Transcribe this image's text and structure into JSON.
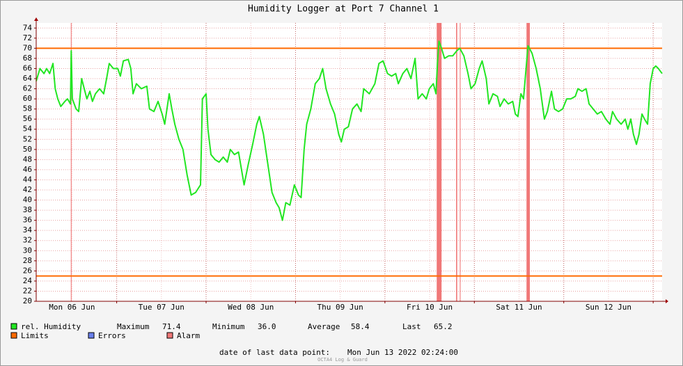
{
  "chart_data": {
    "type": "line",
    "title": "Humidity Logger at Port 7 Channel 1",
    "x": [
      2.4,
      3.4,
      4.5,
      5.2,
      6.0,
      6.9,
      7.5,
      8.2,
      9.0,
      10.1,
      10.8,
      11.6,
      11.8,
      12.1,
      13.1,
      13.8,
      14.6,
      15.3,
      16.0,
      16.8,
      17.5,
      18.3,
      19.4,
      20.5,
      21.3,
      22.0,
      23.1,
      24.3,
      25.0,
      25.8,
      27.1,
      27.8,
      28.4,
      29.3,
      30.6,
      32.1,
      32.8,
      34.0,
      35.1,
      36.2,
      36.9,
      38.1,
      38.8,
      39.6,
      40.7,
      41.8,
      42.9,
      44.0,
      45.2,
      46.5,
      47.0,
      48.0,
      48.5,
      49.3,
      50.4,
      51.5,
      52.6,
      53.7,
      54.5,
      55.6,
      56.7,
      57.5,
      58.2,
      59.3,
      60.5,
      61.6,
      62.3,
      63.4,
      64.6,
      65.7,
      66.8,
      67.6,
      68.5,
      69.4,
      70.5,
      71.7,
      72.8,
      73.5,
      74.3,
      75.0,
      76.1,
      77.3,
      78.4,
      79.3,
      80.2,
      81.4,
      82.5,
      83.6,
      84.3,
      85.1,
      86.2,
      87.3,
      88.5,
      89.6,
      90.3,
      91.8,
      93.3,
      94.4,
      95.5,
      96.7,
      97.8,
      98.9,
      99.6,
      100.8,
      101.9,
      103.0,
      104.1,
      104.9,
      106.0,
      107.1,
      107.9,
      109.0,
      109.7,
      110.1,
      110.5,
      111.2,
      112.0,
      113.1,
      114.2,
      115.3,
      116.1,
      117.2,
      118.3,
      119.1,
      120.2,
      121.3,
      122.1,
      123.2,
      123.9,
      125.0,
      126.2,
      126.9,
      128.0,
      129.1,
      130.3,
      131.0,
      131.7,
      132.5,
      133.2,
      134.0,
      134.4,
      135.5,
      136.6,
      137.7,
      138.8,
      139.6,
      140.7,
      141.5,
      142.6,
      143.7,
      144.8,
      145.9,
      147.1,
      147.8,
      148.9,
      150.0,
      150.8,
      151.9,
      153.0,
      154.1,
      155.3,
      156.4,
      157.1,
      158.2,
      159.4,
      160.5,
      161.2,
      162.0,
      162.7,
      163.5,
      164.2,
      165.0,
      165.7,
      166.5,
      167.2,
      168.0,
      168.7,
      169.4,
      170.4
    ],
    "series": [
      {
        "name": "rel. Humidity",
        "color": "#22e622",
        "values": [
          63.5,
          66,
          65,
          66,
          65,
          67,
          62,
          60,
          58.5,
          59.5,
          60,
          59,
          69.5,
          60,
          58,
          57.5,
          64,
          62,
          60,
          61.5,
          59.5,
          61,
          62,
          61,
          64,
          67,
          66,
          66,
          64.5,
          67.5,
          67.8,
          66,
          61,
          63,
          62,
          62.5,
          58,
          57.5,
          59.5,
          57,
          55,
          61,
          58,
          55,
          52,
          50,
          45,
          41,
          41.5,
          43,
          60,
          61,
          54,
          49,
          48,
          47.5,
          48.5,
          47.5,
          50,
          49,
          49.5,
          46,
          43,
          47,
          51,
          55,
          56.5,
          53,
          47,
          41.5,
          39.5,
          38.5,
          36,
          39.5,
          39,
          43,
          41,
          40.5,
          50,
          55,
          58,
          63,
          64,
          66,
          62,
          59,
          57,
          53,
          51.5,
          54,
          54.5,
          58,
          59,
          57.5,
          62,
          61,
          63,
          67,
          67.5,
          65,
          64.5,
          65,
          63,
          65,
          66,
          64,
          68,
          60,
          61,
          60,
          62,
          63,
          61,
          67,
          71.4,
          70,
          68,
          68.5,
          68.5,
          69.5,
          70,
          68.5,
          65,
          62,
          63,
          66,
          67.5,
          64,
          59,
          61,
          60.5,
          58.5,
          60,
          59,
          59.5,
          57,
          56.5,
          61,
          60,
          67,
          70.5,
          69,
          66,
          62,
          56,
          57.5,
          61.5,
          58,
          57.5,
          58,
          60,
          60,
          60.5,
          62,
          61.5,
          62,
          59,
          58,
          57,
          57.5,
          56,
          55,
          57.5,
          56,
          55,
          56,
          54,
          56,
          53,
          51,
          53,
          57,
          56,
          55,
          63,
          66,
          66.5,
          66,
          65
        ]
      }
    ],
    "limits": {
      "name": "Limits",
      "color": "#ff6a00",
      "values": [
        70,
        25
      ]
    },
    "errors": {
      "name": "Errors",
      "color": "#6a80ec"
    },
    "alarm": {
      "name": "Alarm",
      "color": "#f07878",
      "bands": [
        [
          11.7,
          11.9
        ],
        [
          109.9,
          111.2
        ],
        [
          115.1,
          115.4
        ],
        [
          116.1,
          116.3
        ],
        [
          134.0,
          134.9
        ]
      ]
    },
    "stats": [
      {
        "label": "Maximum",
        "value": "71.4"
      },
      {
        "label": "Minimum",
        "value": "36.0"
      },
      {
        "label": "Average",
        "value": "58.4"
      },
      {
        "label": "Last",
        "value": "65.2"
      }
    ],
    "xlim": [
      2.4,
      170.4
    ],
    "ylim": [
      20,
      75
    ],
    "xticks": [
      {
        "value": 12,
        "label": "Mon 06 Jun"
      },
      {
        "value": 36,
        "label": "Tue 07 Jun"
      },
      {
        "value": 60,
        "label": "Wed 08 Jun"
      },
      {
        "value": 84,
        "label": "Thu 09 Jun"
      },
      {
        "value": 108,
        "label": "Fri 10 Jun"
      },
      {
        "value": 132,
        "label": "Sat 11 Jun"
      },
      {
        "value": 156,
        "label": "Sun 12 Jun"
      }
    ],
    "xgrid": [
      24,
      48,
      72,
      96,
      120,
      144,
      168
    ],
    "yticks": [
      20,
      22,
      24,
      26,
      28,
      30,
      32,
      34,
      36,
      38,
      40,
      42,
      44,
      46,
      48,
      50,
      52,
      54,
      56,
      58,
      60,
      62,
      64,
      66,
      68,
      70,
      72,
      74
    ],
    "grid": true,
    "footer": {
      "label": "date of last data point:",
      "value": "Mon Jun 13 2022 02:24:00"
    },
    "watermark": "OCTA4 Log & Guard"
  }
}
